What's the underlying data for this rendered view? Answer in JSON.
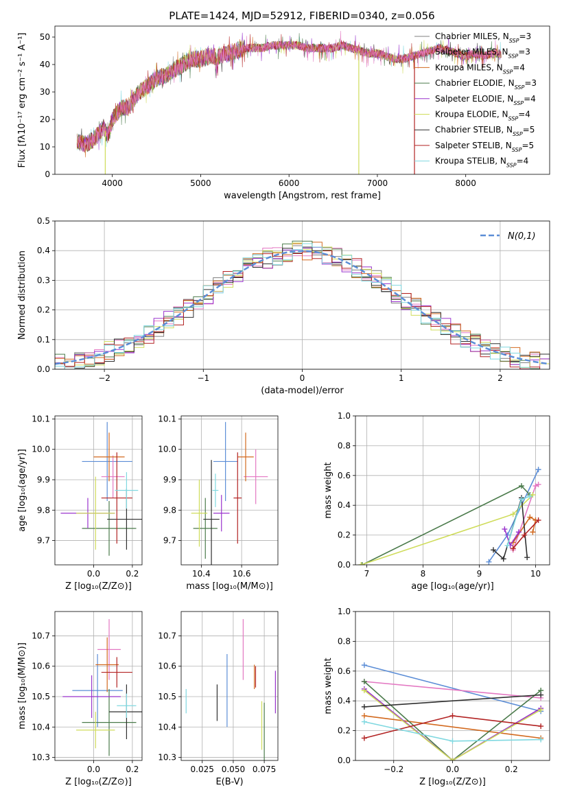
{
  "figure": {
    "title": "PLATE=1424, MJD=52912, FIBERID=0340, z=0.056"
  },
  "chart_data": [
    {
      "id": "spectrum",
      "type": "line",
      "xlabel": "wavelength [Angstrom, rest frame]",
      "ylabel": "Flux [fλ10⁻¹⁷ erg cm⁻² s⁻¹ A⁻¹]",
      "xlim": [
        3350,
        8950
      ],
      "ylim": [
        0,
        54
      ],
      "xticks": [
        "4000",
        "5000",
        "6000",
        "7000",
        "8000"
      ],
      "yticks": [
        "0",
        "10",
        "20",
        "30",
        "40",
        "50"
      ],
      "legend_position": "upper right",
      "legend": [
        {
          "label": "Chabrier MILES, N",
          "sub": "SSP",
          "suffix": "=3",
          "color": "#7f7f7f"
        },
        {
          "label": "Salpeter MILES, N",
          "sub": "SSP",
          "suffix": "=3",
          "color": "#e377c2"
        },
        {
          "label": "Kroupa MILES, N",
          "sub": "SSP",
          "suffix": "=4",
          "color": "#d2691e"
        },
        {
          "label": "Chabrier ELODIE, N",
          "sub": "SSP",
          "suffix": "=3",
          "color": "#4a7a4a"
        },
        {
          "label": "Salpeter ELODIE, N",
          "sub": "SSP",
          "suffix": "=4",
          "color": "#9932cc"
        },
        {
          "label": "Kroupa ELODIE, N",
          "sub": "SSP",
          "suffix": "=4",
          "color": "#cfdc5a"
        },
        {
          "label": "Chabrier STELIB, N",
          "sub": "SSP",
          "suffix": "=5",
          "color": "#2f2f2f"
        },
        {
          "label": "Salpeter STELIB, N",
          "sub": "SSP",
          "suffix": "=5",
          "color": "#b22222"
        },
        {
          "label": "Kroupa STELIB, N",
          "sub": "SSP",
          "suffix": "=4",
          "color": "#7fd8e0"
        }
      ],
      "continuum": [
        [
          3600,
          12
        ],
        [
          3700,
          11
        ],
        [
          3800,
          13
        ],
        [
          3900,
          17
        ],
        [
          3950,
          14
        ],
        [
          4000,
          20
        ],
        [
          4100,
          24
        ],
        [
          4200,
          25
        ],
        [
          4300,
          30
        ],
        [
          4400,
          32
        ],
        [
          4500,
          35
        ],
        [
          4600,
          36
        ],
        [
          4700,
          38
        ],
        [
          4800,
          40
        ],
        [
          4900,
          42
        ],
        [
          5000,
          42
        ],
        [
          5100,
          43
        ],
        [
          5200,
          43
        ],
        [
          5300,
          44
        ],
        [
          5400,
          45
        ],
        [
          5500,
          46
        ],
        [
          5600,
          46
        ],
        [
          5700,
          46
        ],
        [
          5800,
          47
        ],
        [
          5900,
          47
        ],
        [
          6000,
          47
        ],
        [
          6100,
          47
        ],
        [
          6200,
          46
        ],
        [
          6300,
          46
        ],
        [
          6400,
          46
        ],
        [
          6500,
          46
        ],
        [
          6600,
          47
        ],
        [
          6700,
          46
        ],
        [
          6800,
          45
        ],
        [
          6900,
          44
        ],
        [
          7000,
          44
        ],
        [
          7100,
          43
        ],
        [
          7200,
          42
        ],
        [
          7300,
          42
        ],
        [
          7400,
          43
        ],
        [
          7500,
          44
        ],
        [
          7600,
          45
        ],
        [
          7700,
          46
        ],
        [
          7800,
          45
        ],
        [
          7900,
          44
        ],
        [
          8000,
          43
        ],
        [
          8100,
          44
        ],
        [
          8200,
          43
        ],
        [
          8300,
          44
        ],
        [
          8400,
          44
        ]
      ],
      "dropouts": [
        [
          3920,
          0,
          "#cfdc5a"
        ],
        [
          6790,
          0,
          "#cfdc5a"
        ],
        [
          7420,
          0,
          "#b22222"
        ]
      ]
    },
    {
      "id": "residuals",
      "type": "area",
      "xlabel": "(data-model)/error",
      "ylabel": "Normed distribution",
      "xlim": [
        -2.5,
        2.5
      ],
      "ylim": [
        0,
        0.5
      ],
      "xticks": [
        "−2",
        "−1",
        "0",
        "1",
        "2"
      ],
      "yticks": [
        "0.0",
        "0.1",
        "0.2",
        "0.3",
        "0.4",
        "0.5"
      ],
      "legend": [
        {
          "label": "N(0,1)",
          "color": "#5b8dd6"
        }
      ]
    },
    {
      "id": "age-vs-Z",
      "type": "scatter",
      "xlabel": "Z [log₁₀(Z/Z⊙)]",
      "ylabel": "age  [log₁₀(age/yr)]",
      "xlim": [
        -0.2,
        0.25
      ],
      "ylim": [
        9.62,
        10.11
      ],
      "xticks": [
        "0.0",
        "0.2"
      ],
      "yticks": [
        "9.7",
        "9.8",
        "9.9",
        "10.0",
        "10.1"
      ],
      "points": [
        {
          "x": 0.07,
          "y": 9.96,
          "xerr": 0.13,
          "yerr": 0.13,
          "color": "#5b8dd6"
        },
        {
          "x": 0.1,
          "y": 9.91,
          "xerr": 0.06,
          "yerr": 0.07,
          "color": "#e377c2"
        },
        {
          "x": 0.08,
          "y": 9.975,
          "xerr": 0.08,
          "yerr": 0.08,
          "color": "#d2691e"
        },
        {
          "x": 0.08,
          "y": 9.74,
          "xerr": 0.14,
          "yerr": 0.09,
          "color": "#4a7a4a"
        },
        {
          "x": -0.03,
          "y": 9.79,
          "xerr": 0.14,
          "yerr": 0.05,
          "color": "#9932cc"
        },
        {
          "x": 0.01,
          "y": 9.79,
          "xerr": 0.1,
          "yerr": 0.12,
          "color": "#cfdc5a"
        },
        {
          "x": 0.17,
          "y": 9.77,
          "xerr": 0.1,
          "yerr": 0.1,
          "color": "#2f2f2f"
        },
        {
          "x": 0.12,
          "y": 9.84,
          "xerr": 0.08,
          "yerr": 0.15,
          "color": "#b22222"
        },
        {
          "x": 0.17,
          "y": 9.865,
          "xerr": 0.06,
          "yerr": 0.06,
          "color": "#7fd8e0"
        }
      ]
    },
    {
      "id": "age-vs-mass",
      "type": "scatter",
      "xlabel": "mass [log₁₀(M/M⊙)]",
      "ylabel": "",
      "xlim": [
        10.3,
        10.78
      ],
      "ylim": [
        9.62,
        10.11
      ],
      "xticks": [
        "10.4",
        "10.6"
      ],
      "yticks": [
        "9.7",
        "9.8",
        "9.9",
        "10.0",
        "10.1"
      ],
      "points": [
        {
          "x": 10.52,
          "y": 9.96,
          "xerr": 0.06,
          "yerr": 0.13,
          "color": "#5b8dd6"
        },
        {
          "x": 10.67,
          "y": 9.91,
          "xerr": 0.06,
          "yerr": 0.09,
          "color": "#e377c2"
        },
        {
          "x": 10.62,
          "y": 9.975,
          "xerr": 0.04,
          "yerr": 0.08,
          "color": "#d2691e"
        },
        {
          "x": 10.42,
          "y": 9.74,
          "xerr": 0.06,
          "yerr": 0.1,
          "color": "#4a7a4a"
        },
        {
          "x": 10.5,
          "y": 9.79,
          "xerr": 0.04,
          "yerr": 0.06,
          "color": "#9932cc"
        },
        {
          "x": 10.39,
          "y": 9.79,
          "xerr": 0.04,
          "yerr": 0.11,
          "color": "#cfdc5a"
        },
        {
          "x": 10.45,
          "y": 9.77,
          "xerr": 0.04,
          "yerr": 0.195,
          "color": "#2f2f2f"
        },
        {
          "x": 10.58,
          "y": 9.84,
          "xerr": 0.02,
          "yerr": 0.15,
          "color": "#b22222"
        },
        {
          "x": 10.47,
          "y": 9.865,
          "xerr": 0.015,
          "yerr": 0.055,
          "color": "#7fd8e0"
        }
      ]
    },
    {
      "id": "weight-vs-age",
      "type": "line",
      "xlabel": "age  [log₁₀(age/yr)]",
      "ylabel": "mass weight",
      "xlim": [
        6.8,
        10.25
      ],
      "ylim": [
        0,
        1
      ],
      "xticks": [
        "7",
        "8",
        "9",
        "10"
      ],
      "yticks": [
        "0.0",
        "0.2",
        "0.4",
        "0.6",
        "0.8",
        "1.0"
      ],
      "series": [
        {
          "color": "#5b8dd6",
          "points": [
            [
              9.17,
              0.02
            ],
            [
              9.5,
              0.2
            ],
            [
              10.05,
              0.64
            ]
          ]
        },
        {
          "color": "#e377c2",
          "points": [
            [
              9.6,
              0.1
            ],
            [
              10.0,
              0.53
            ],
            [
              10.05,
              0.54
            ]
          ]
        },
        {
          "color": "#d2691e",
          "points": [
            [
              9.6,
              0.15
            ],
            [
              9.9,
              0.32
            ],
            [
              10.0,
              0.3
            ],
            [
              9.95,
              0.22
            ]
          ]
        },
        {
          "color": "#4a7a4a",
          "points": [
            [
              6.92,
              0.0
            ],
            [
              9.75,
              0.53
            ],
            [
              9.9,
              0.47
            ]
          ]
        },
        {
          "color": "#9932cc",
          "points": [
            [
              9.45,
              0.24
            ],
            [
              9.55,
              0.13
            ],
            [
              9.7,
              0.22
            ]
          ]
        },
        {
          "color": "#cfdc5a",
          "points": [
            [
              6.9,
              0.0
            ],
            [
              9.6,
              0.34
            ],
            [
              9.95,
              0.47
            ]
          ]
        },
        {
          "color": "#2f2f2f",
          "points": [
            [
              9.25,
              0.1
            ],
            [
              9.43,
              0.04
            ],
            [
              9.75,
              0.45
            ],
            [
              9.85,
              0.05
            ]
          ]
        },
        {
          "color": "#b22222",
          "points": [
            [
              9.6,
              0.11
            ],
            [
              9.8,
              0.2
            ],
            [
              10.05,
              0.3
            ]
          ]
        },
        {
          "color": "#7fd8e0",
          "points": [
            [
              9.5,
              0.13
            ],
            [
              9.75,
              0.44
            ],
            [
              9.9,
              0.46
            ]
          ]
        }
      ]
    },
    {
      "id": "mass-vs-Z",
      "type": "scatter",
      "xlabel": "Z [log₁₀(Z/Z⊙)]",
      "ylabel": "mass [log₁₀(M/M⊙)]",
      "xlim": [
        -0.2,
        0.25
      ],
      "ylim": [
        10.29,
        10.78
      ],
      "xticks": [
        "0.0",
        "0.2"
      ],
      "yticks": [
        "10.3",
        "10.4",
        "10.5",
        "10.6",
        "10.7"
      ],
      "points": [
        {
          "x": 0.02,
          "y": 10.52,
          "xerr": 0.13,
          "yerr": 0.12,
          "color": "#5b8dd6"
        },
        {
          "x": 0.08,
          "y": 10.655,
          "xerr": 0.06,
          "yerr": 0.1,
          "color": "#e377c2"
        },
        {
          "x": 0.07,
          "y": 10.605,
          "xerr": 0.06,
          "yerr": 0.09,
          "color": "#d2691e"
        },
        {
          "x": 0.08,
          "y": 10.415,
          "xerr": 0.14,
          "yerr": 0.11,
          "color": "#4a7a4a"
        },
        {
          "x": -0.01,
          "y": 10.5,
          "xerr": 0.15,
          "yerr": 0.07,
          "color": "#9932cc"
        },
        {
          "x": 0.01,
          "y": 10.39,
          "xerr": 0.1,
          "yerr": 0.06,
          "color": "#cfdc5a"
        },
        {
          "x": 0.17,
          "y": 10.45,
          "xerr": 0.09,
          "yerr": 0.09,
          "color": "#2f2f2f"
        },
        {
          "x": 0.12,
          "y": 10.58,
          "xerr": 0.08,
          "yerr": 0.05,
          "color": "#b22222"
        },
        {
          "x": 0.17,
          "y": 10.47,
          "xerr": 0.05,
          "yerr": 0.04,
          "color": "#7fd8e0"
        }
      ]
    },
    {
      "id": "mass-vs-ebv",
      "type": "scatter",
      "xlabel": "E(B-V)",
      "ylabel": "",
      "xlim": [
        0.008,
        0.086
      ],
      "ylim": [
        10.29,
        10.78
      ],
      "xticks": [
        "0.025",
        "0.050",
        "0.075"
      ],
      "yticks": [
        "10.3",
        "10.4",
        "10.5",
        "10.6",
        "10.7"
      ],
      "points": [
        {
          "x": 0.045,
          "y": 10.52,
          "yerr": 0.12,
          "color": "#5b8dd6"
        },
        {
          "x": 0.058,
          "y": 10.655,
          "yerr": 0.1,
          "color": "#e377c2"
        },
        {
          "x": 0.067,
          "y": 10.565,
          "yerr": 0.04,
          "color": "#d2691e"
        },
        {
          "x": 0.075,
          "y": 10.38,
          "yerr": 0.1,
          "color": "#4a7a4a"
        },
        {
          "x": 0.084,
          "y": 10.515,
          "yerr": 0.07,
          "color": "#9932cc"
        },
        {
          "x": 0.073,
          "y": 10.405,
          "yerr": 0.08,
          "color": "#cfdc5a"
        },
        {
          "x": 0.037,
          "y": 10.48,
          "yerr": 0.06,
          "color": "#2f2f2f"
        },
        {
          "x": 0.068,
          "y": 10.565,
          "yerr": 0.035,
          "color": "#b22222"
        },
        {
          "x": 0.012,
          "y": 10.485,
          "yerr": 0.04,
          "color": "#7fd8e0"
        }
      ]
    },
    {
      "id": "weight-vs-Z",
      "type": "line",
      "xlabel": "Z [log₁₀(Z/Z⊙)]",
      "ylabel": "mass weight",
      "xlim": [
        -0.33,
        0.33
      ],
      "ylim": [
        0,
        1
      ],
      "xticks": [
        "−0.2",
        "0.0",
        "0.2"
      ],
      "yticks": [
        "0.0",
        "0.2",
        "0.4",
        "0.6",
        "0.8",
        "1.0"
      ],
      "series": [
        {
          "color": "#5b8dd6",
          "points": [
            [
              -0.3,
              0.64
            ],
            [
              0.3,
              0.33
            ]
          ]
        },
        {
          "color": "#e377c2",
          "points": [
            [
              -0.3,
              0.53
            ],
            [
              0.3,
              0.42
            ]
          ]
        },
        {
          "color": "#d2691e",
          "points": [
            [
              -0.3,
              0.3
            ],
            [
              0.3,
              0.15
            ]
          ]
        },
        {
          "color": "#4a7a4a",
          "points": [
            [
              -0.3,
              0.53
            ],
            [
              0.0,
              0.0
            ],
            [
              0.3,
              0.47
            ]
          ]
        },
        {
          "color": "#9932cc",
          "points": [
            [
              -0.3,
              0.48
            ],
            [
              0.0,
              0.0
            ],
            [
              0.3,
              0.35
            ]
          ]
        },
        {
          "color": "#cfdc5a",
          "points": [
            [
              -0.3,
              0.47
            ],
            [
              0.0,
              0.0
            ],
            [
              0.3,
              0.34
            ]
          ]
        },
        {
          "color": "#2f2f2f",
          "points": [
            [
              -0.3,
              0.36
            ],
            [
              0.3,
              0.44
            ]
          ]
        },
        {
          "color": "#b22222",
          "points": [
            [
              -0.3,
              0.15
            ],
            [
              0.0,
              0.3
            ],
            [
              0.3,
              0.23
            ]
          ]
        },
        {
          "color": "#7fd8e0",
          "points": [
            [
              -0.3,
              0.26
            ],
            [
              0.0,
              0.13
            ],
            [
              0.3,
              0.14
            ]
          ]
        }
      ]
    }
  ]
}
